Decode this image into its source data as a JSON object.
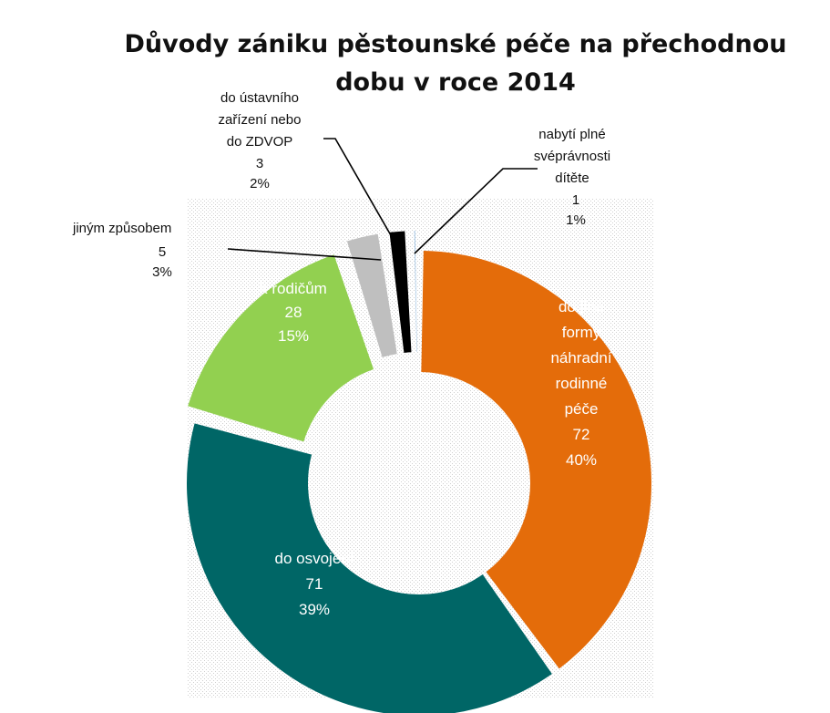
{
  "chart_data": {
    "type": "pie",
    "variant": "exploded-donut",
    "title": "Důvody zániku pěstounské péče na přechodnou dobu v roce 2014",
    "title_lines": [
      "Důvody zániku pěstounské péče na přechodnou",
      "dobu v roce 2014"
    ],
    "slices": [
      {
        "label": "do jiné formy náhradní rodinné péče",
        "label_lines": [
          "do jiné",
          "formy",
          "náhradní",
          "rodinné",
          "péče"
        ],
        "value": 72,
        "percent": "40%",
        "color": "#E46C0A",
        "label_position": "inside"
      },
      {
        "label": "do osvojení",
        "label_lines": [
          "do osvojení"
        ],
        "value": 71,
        "percent": "39%",
        "color": "#006666",
        "label_position": "inside"
      },
      {
        "label": "k rodičům",
        "label_lines": [
          "k rodičům"
        ],
        "value": 28,
        "percent": "15%",
        "color": "#92D050",
        "label_position": "inside"
      },
      {
        "label": "jiným způsobem",
        "label_lines": [
          "jiným způsobem"
        ],
        "value": 5,
        "percent": "3%",
        "color": "#BFBFBF",
        "label_position": "outside"
      },
      {
        "label": "do ústavního zařízení nebo do ZDVOP",
        "label_lines": [
          "do ústavního",
          "zařízení nebo",
          "do ZDVOP"
        ],
        "value": 3,
        "percent": "2%",
        "color": "#000000",
        "label_position": "outside"
      },
      {
        "label": "nabytí plné svéprávnosti dítěte",
        "label_lines": [
          "nabytí plné",
          "svéprávnosti",
          "dítěte"
        ],
        "value": 1,
        "percent": "1%",
        "color": "#9DC3E6",
        "label_position": "outside"
      }
    ],
    "legend": "none"
  }
}
